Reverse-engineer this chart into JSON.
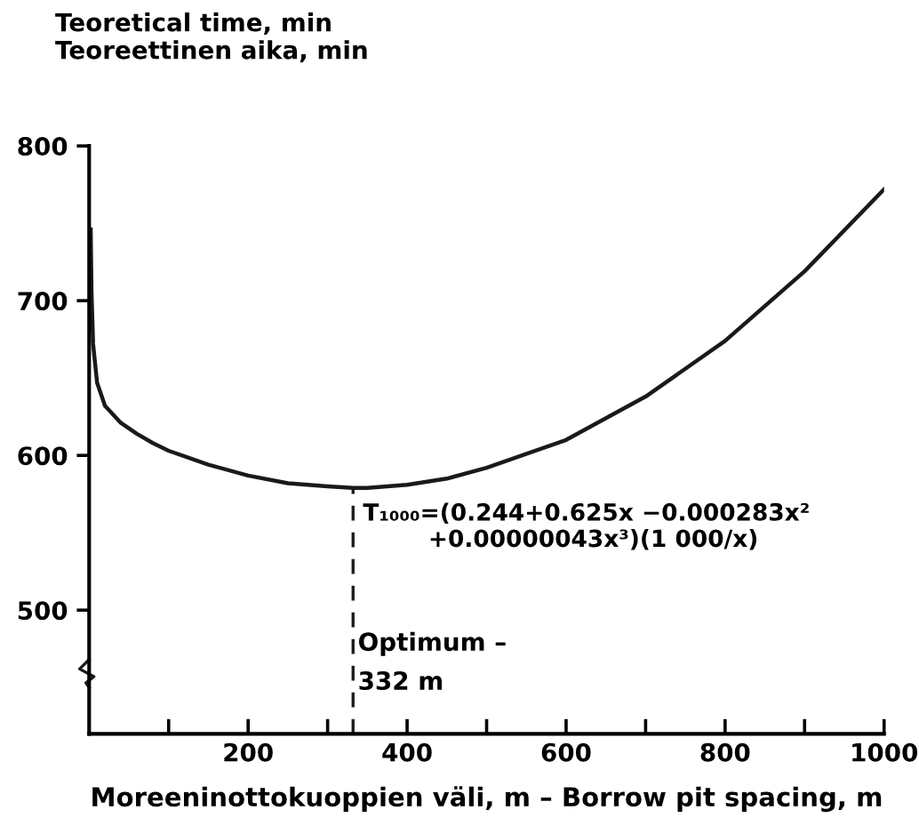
{
  "chart_data": {
    "type": "line",
    "ylabel": "Teoretical time, min\nTeoreettinen aika, min",
    "xlabel": "Moreeninottokuoppien väli, m – Borrow pit spacing, m",
    "x": [
      2,
      3,
      5,
      10,
      20,
      40,
      60,
      80,
      100,
      150,
      200,
      250,
      300,
      332,
      350,
      400,
      450,
      500,
      600,
      700,
      800,
      900,
      1000
    ],
    "series": [
      {
        "color": "#1a1a1a",
        "values": [
          746,
          706,
          672,
          647,
          632,
          621,
          614,
          608,
          603,
          594,
          587,
          582,
          580,
          579,
          579,
          581,
          585,
          592,
          610,
          638,
          674,
          719,
          772
        ]
      }
    ],
    "xlim": [
      0,
      1000
    ],
    "ylim": [
      420,
      800
    ],
    "xticks": [
      {
        "value": 100,
        "label": null
      },
      200,
      {
        "value": 300,
        "label": null
      },
      400,
      {
        "value": 500,
        "label": null
      },
      600,
      {
        "value": 700,
        "label": null
      },
      800,
      {
        "value": 900,
        "label": null
      },
      1000
    ],
    "yticks": [
      500,
      600,
      700,
      800
    ],
    "ref_lines": [
      {
        "axis": "x",
        "value": 332,
        "label": "Optimum –\n332 m",
        "line_style": "dashed",
        "color": "#1a1a1a"
      }
    ],
    "annotations": [
      {
        "text": "T₁₀₀₀=(0.244+0.625x −0.000283x²\n        +0.00000043x³)(1 000/x)",
        "x": 332,
        "y": 579
      }
    ],
    "grid": false,
    "legend": false,
    "marker": "none",
    "line_style": "solid"
  }
}
